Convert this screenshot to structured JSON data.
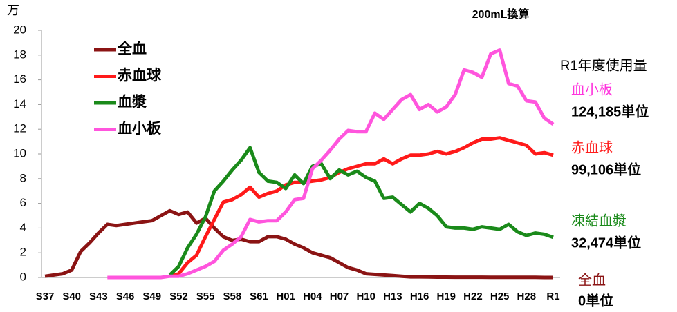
{
  "chart_data": {
    "type": "line",
    "y_unit": "万",
    "subtitle": "200mL換算",
    "categories": [
      "S37",
      null,
      null,
      "S40",
      null,
      null,
      "S43",
      null,
      null,
      "S46",
      null,
      null,
      "S49",
      null,
      null,
      "S52",
      null,
      null,
      "S55",
      null,
      null,
      "S58",
      null,
      null,
      "S61",
      null,
      null,
      "H01",
      null,
      null,
      "H04",
      null,
      null,
      "H07",
      null,
      null,
      "H10",
      null,
      null,
      "H13",
      null,
      null,
      "H16",
      null,
      null,
      "H19",
      null,
      null,
      "H22",
      null,
      null,
      "H25",
      null,
      null,
      "H28",
      null,
      null,
      "R1"
    ],
    "ylim": [
      0,
      20
    ],
    "yticks": [
      0,
      2,
      4,
      6,
      8,
      10,
      12,
      14,
      16,
      18,
      20
    ],
    "series": [
      {
        "name": "全血",
        "color": "#8b1414",
        "values": [
          0.1,
          0.2,
          0.3,
          0.6,
          2.1,
          2.8,
          3.6,
          4.3,
          4.2,
          4.3,
          4.4,
          4.5,
          4.6,
          5.0,
          5.4,
          5.1,
          5.3,
          4.4,
          4.8,
          4.0,
          3.3,
          3.0,
          3.1,
          2.9,
          2.9,
          3.3,
          3.3,
          3.1,
          2.7,
          2.4,
          2.0,
          1.8,
          1.6,
          1.2,
          0.8,
          0.6,
          0.3,
          0.25,
          0.2,
          0.15,
          0.1,
          0.05,
          0.05,
          0.04,
          0.03,
          0.03,
          0.02,
          0.02,
          0.02,
          0.02,
          0.01,
          0.01,
          0.01,
          0.01,
          0.01,
          0.01,
          0,
          0
        ]
      },
      {
        "name": "赤血球",
        "color": "#ff1a1a",
        "values": [
          null,
          null,
          null,
          null,
          null,
          null,
          null,
          null,
          null,
          null,
          null,
          null,
          null,
          null,
          0.1,
          0.3,
          1.2,
          1.8,
          3.3,
          4.7,
          6.1,
          6.3,
          6.7,
          7.3,
          6.5,
          6.8,
          7.0,
          7.5,
          7.7,
          7.7,
          7.8,
          7.9,
          8.1,
          8.5,
          8.8,
          9.0,
          9.2,
          9.2,
          9.6,
          9.2,
          9.6,
          9.9,
          9.9,
          10.0,
          10.2,
          10.0,
          10.2,
          10.5,
          10.9,
          11.2,
          11.2,
          11.3,
          11.1,
          10.9,
          10.7,
          10.0,
          10.1,
          9.9
        ]
      },
      {
        "name": "血漿",
        "color": "#1a8a1a",
        "values": [
          null,
          null,
          null,
          null,
          null,
          null,
          null,
          null,
          null,
          null,
          null,
          null,
          null,
          null,
          0.2,
          0.9,
          2.4,
          3.5,
          4.9,
          7.0,
          7.8,
          8.7,
          9.5,
          10.5,
          8.5,
          7.8,
          7.7,
          7.2,
          8.3,
          7.6,
          9.0,
          9.2,
          8.0,
          8.7,
          8.3,
          8.6,
          8.1,
          7.8,
          6.4,
          6.5,
          5.9,
          5.3,
          6.0,
          5.6,
          5.0,
          4.1,
          4.0,
          4.0,
          3.9,
          4.1,
          4.0,
          3.9,
          4.3,
          3.7,
          3.4,
          3.6,
          3.5,
          3.25
        ]
      },
      {
        "name": "血小板",
        "color": "#ff55dd",
        "values": [
          null,
          null,
          null,
          null,
          null,
          null,
          null,
          0,
          0,
          0,
          0,
          0,
          0,
          0,
          0.1,
          0.1,
          0.3,
          0.6,
          0.9,
          1.3,
          2.2,
          2.7,
          3.3,
          4.7,
          4.5,
          4.6,
          4.6,
          5.3,
          6.3,
          6.4,
          8.8,
          9.5,
          10.3,
          11.2,
          11.9,
          11.8,
          11.8,
          13.3,
          12.8,
          13.6,
          14.4,
          14.8,
          13.6,
          14.0,
          13.4,
          13.8,
          14.8,
          16.8,
          16.6,
          16.2,
          18.1,
          18.4,
          15.7,
          15.5,
          14.3,
          14.2,
          12.9,
          12.4
        ]
      }
    ],
    "annotations": [
      {
        "text": "R1年度使用量",
        "color": "#000000"
      },
      {
        "text": "血小板",
        "color": "#ff33dd"
      },
      {
        "text": "124,185単位",
        "color": "#000000"
      },
      {
        "text": "赤血球",
        "color": "#ff1a1a"
      },
      {
        "text": "99,106単位",
        "color": "#000000"
      },
      {
        "text": "凍結血漿",
        "color": "#1a8a1a"
      },
      {
        "text": "32,474単位",
        "color": "#000000"
      },
      {
        "text": "全血",
        "color": "#8b1414"
      },
      {
        "text": "0単位",
        "color": "#000000"
      }
    ]
  }
}
